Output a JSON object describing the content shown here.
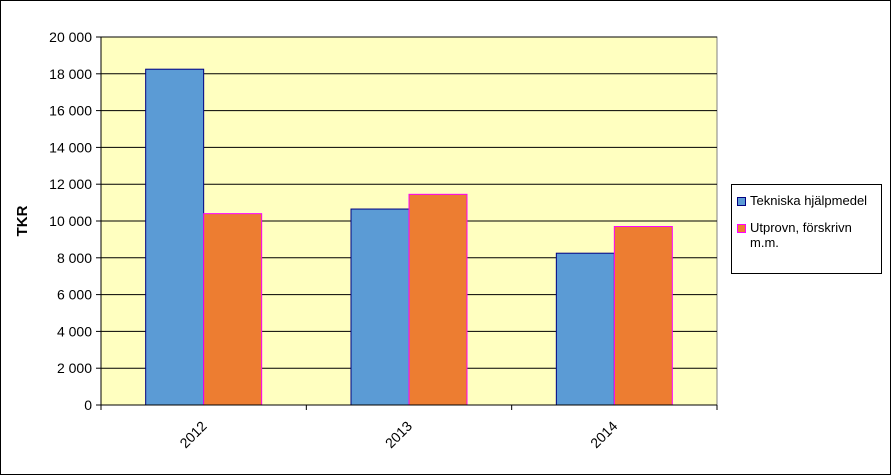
{
  "chart_data": {
    "type": "bar",
    "y_label": "TKR",
    "categories": [
      "2012",
      "2013",
      "2014"
    ],
    "series": [
      {
        "name": "Tekniska hjälpmedel",
        "color": "#5b9bd5",
        "border": "#000080",
        "values": [
          18250,
          10650,
          8250
        ]
      },
      {
        "name": "Utprovn, förskrivn m.m.",
        "color": "#ed7d31",
        "border": "#ff00ff",
        "values": [
          10400,
          11450,
          9700
        ]
      }
    ],
    "ylim": [
      0,
      20000
    ],
    "yticks": [
      0,
      {
        "value": 2000,
        "label": "2 000"
      },
      {
        "value": 4000,
        "label": "4 000"
      },
      {
        "value": 6000,
        "label": "6 000"
      },
      {
        "value": 8000,
        "label": "8 000"
      },
      {
        "value": 10000,
        "label": "10 000"
      },
      {
        "value": 12000,
        "label": "12 000"
      },
      {
        "value": 14000,
        "label": "14 000"
      },
      {
        "value": 16000,
        "label": "16 000"
      },
      {
        "value": 18000,
        "label": "18 000"
      },
      {
        "value": 20000,
        "label": "20 000"
      }
    ],
    "grid": true,
    "plot_background": "#ffffc0",
    "legend": "right"
  }
}
